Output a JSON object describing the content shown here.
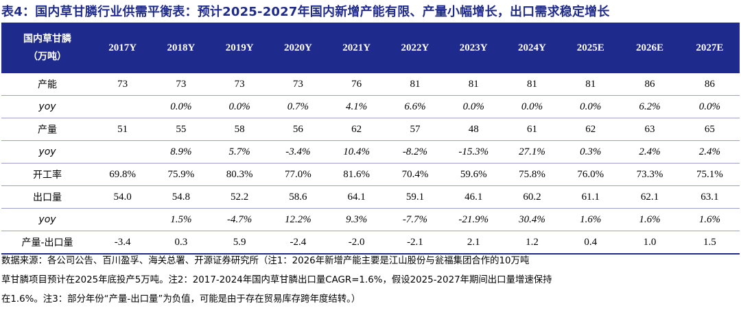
{
  "title": "表4：国内草甘膦行业供需平衡表：预计2025-2027年国内新增产能有限、产量小幅增长，出口需求稳定增长",
  "table": {
    "corner_line1": "国内草甘膦",
    "corner_line2": "（万吨）",
    "years": [
      "2017Y",
      "2018Y",
      "2019Y",
      "2020Y",
      "2021Y",
      "2022Y",
      "2023Y",
      "2024Y",
      "2025E",
      "2026E",
      "2027E"
    ],
    "rows": [
      {
        "label": "产能",
        "italic": false,
        "values": [
          "73",
          "73",
          "73",
          "73",
          "76",
          "81",
          "81",
          "81",
          "81",
          "86",
          "86"
        ]
      },
      {
        "label": "yoy",
        "italic": true,
        "values": [
          "",
          "0.0%",
          "0.0%",
          "0.7%",
          "4.1%",
          "6.6%",
          "0.0%",
          "0.0%",
          "0.0%",
          "6.2%",
          "0.0%"
        ]
      },
      {
        "label": "产量",
        "italic": false,
        "values": [
          "51",
          "55",
          "58",
          "56",
          "62",
          "57",
          "48",
          "61",
          "62",
          "63",
          "65"
        ]
      },
      {
        "label": "yoy",
        "italic": true,
        "values": [
          "",
          "8.9%",
          "5.7%",
          "-3.4%",
          "10.4%",
          "-8.2%",
          "-15.3%",
          "27.1%",
          "0.3%",
          "2.4%",
          "2.4%"
        ]
      },
      {
        "label": "开工率",
        "italic": false,
        "values": [
          "69.8%",
          "75.9%",
          "80.3%",
          "77.0%",
          "81.6%",
          "70.4%",
          "59.6%",
          "75.8%",
          "76.0%",
          "73.3%",
          "75.1%"
        ]
      },
      {
        "label": "出口量",
        "italic": false,
        "values": [
          "54.0",
          "54.8",
          "52.2",
          "58.6",
          "64.1",
          "59.1",
          "46.1",
          "60.2",
          "61.1",
          "62.1",
          "63.1"
        ]
      },
      {
        "label": "yoy",
        "italic": true,
        "values": [
          "",
          "1.5%",
          "-4.7%",
          "12.2%",
          "9.3%",
          "-7.7%",
          "-21.9%",
          "30.4%",
          "1.6%",
          "1.6%",
          "1.6%"
        ]
      },
      {
        "label": "产量-出口量",
        "italic": false,
        "values": [
          "-3.4",
          "0.3",
          "5.9",
          "-2.4",
          "-2.0",
          "-2.1",
          "2.1",
          "1.2",
          "0.4",
          "1.0",
          "1.5"
        ]
      }
    ]
  },
  "note_lines": [
    "数据来源：各公司公告、百川盈孚、海关总署、开源证券研究所（注1：2026年新增产能主要是江山股份与瓮福集团合作的10万吨",
    "草甘膦项目预计在2025年底投产5万吨。注2：2017-2024年国内草甘膦出口量CAGR=1.6%，假设2025-2027年期间出口量增速保持",
    "在1.6%。注3：部分年份“产量-出口量”为负值，可能是由于存在贸易库存跨年度结转。）"
  ],
  "colors": {
    "header_bg": "#1f2b8c",
    "title_text": "#1f2b8c",
    "rule": "#9aa0c8"
  }
}
